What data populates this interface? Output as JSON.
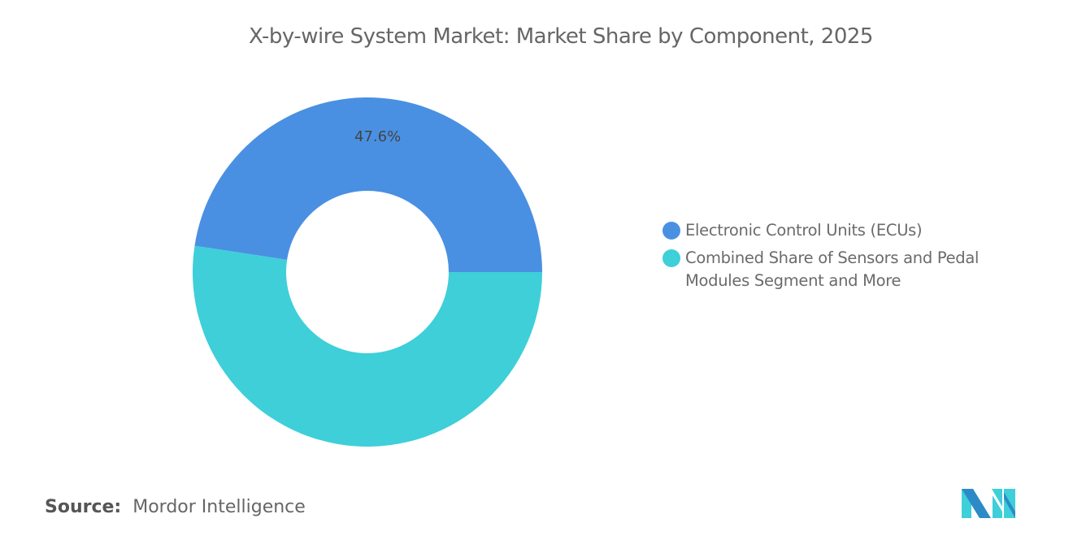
{
  "title": "X-by-wire System Market: Market Share by Component, 2025",
  "chart_data": {
    "type": "pie",
    "donut": true,
    "categories": [
      "Electronic Control Units (ECUs)",
      "Combined Share of Sensors and Pedal Modules Segment and More"
    ],
    "values": [
      47.6,
      52.4
    ],
    "data_labels": [
      "47.6%",
      ""
    ],
    "colors": [
      "#4a90e2",
      "#3ecfd9"
    ],
    "legend_position": "right"
  },
  "source": {
    "label": "Source:",
    "value": "Mordor Intelligence"
  },
  "logo": {
    "colors": [
      "#2c8bc6",
      "#3ecfd9"
    ]
  }
}
